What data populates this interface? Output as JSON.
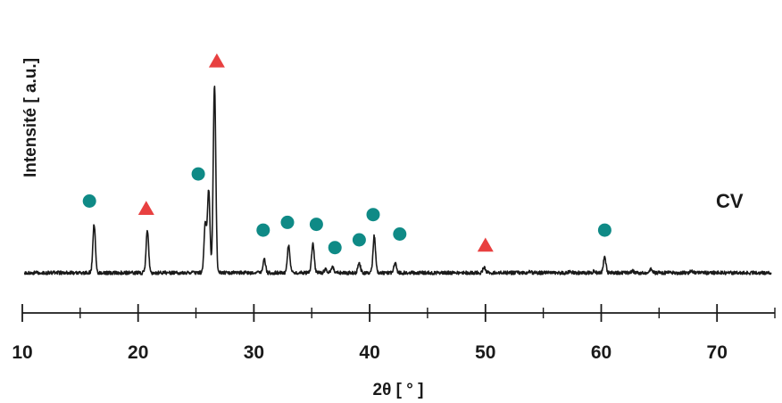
{
  "chart_data": {
    "type": "line",
    "xlabel": "2θ [ ° ]",
    "ylabel": "Intensité [ a.u.]",
    "xlim": [
      10,
      75
    ],
    "x_ticks": [
      10,
      20,
      30,
      40,
      50,
      60,
      70
    ],
    "sample_label": "CV",
    "grid": false,
    "baseline": 3,
    "peaks": [
      {
        "x": 16.2,
        "y": 28
      },
      {
        "x": 20.8,
        "y": 25
      },
      {
        "x": 25.8,
        "y": 28
      },
      {
        "x": 26.1,
        "y": 45
      },
      {
        "x": 26.6,
        "y": 100
      },
      {
        "x": 28.0,
        "y": 3
      },
      {
        "x": 30.9,
        "y": 10
      },
      {
        "x": 33.0,
        "y": 17
      },
      {
        "x": 35.1,
        "y": 18
      },
      {
        "x": 36.2,
        "y": 5
      },
      {
        "x": 36.8,
        "y": 6
      },
      {
        "x": 39.1,
        "y": 8
      },
      {
        "x": 40.4,
        "y": 22
      },
      {
        "x": 42.2,
        "y": 8
      },
      {
        "x": 45.0,
        "y": 3
      },
      {
        "x": 49.9,
        "y": 6
      },
      {
        "x": 53.8,
        "y": 4
      },
      {
        "x": 57.3,
        "y": 4
      },
      {
        "x": 59.4,
        "y": 4
      },
      {
        "x": 60.3,
        "y": 11
      },
      {
        "x": 62.7,
        "y": 4
      },
      {
        "x": 64.3,
        "y": 5
      },
      {
        "x": 67.8,
        "y": 4
      },
      {
        "x": 70.2,
        "y": 3
      }
    ],
    "markers": [
      {
        "phase": "circle",
        "x": 15.8,
        "y": 40
      },
      {
        "phase": "triangle",
        "x": 20.7,
        "y": 36
      },
      {
        "phase": "circle",
        "x": 25.2,
        "y": 54
      },
      {
        "phase": "triangle",
        "x": 26.8,
        "y": 112
      },
      {
        "phase": "circle",
        "x": 30.8,
        "y": 25
      },
      {
        "phase": "circle",
        "x": 32.9,
        "y": 29
      },
      {
        "phase": "circle",
        "x": 35.4,
        "y": 28
      },
      {
        "phase": "circle",
        "x": 37.0,
        "y": 16
      },
      {
        "phase": "circle",
        "x": 39.1,
        "y": 20
      },
      {
        "phase": "circle",
        "x": 40.3,
        "y": 33
      },
      {
        "phase": "circle",
        "x": 42.6,
        "y": 23
      },
      {
        "phase": "triangle",
        "x": 50.0,
        "y": 17
      },
      {
        "phase": "circle",
        "x": 60.3,
        "y": 25
      }
    ],
    "colors": {
      "line": "#1a1a1a",
      "circle": "#0f8a86",
      "triangle": "#e84040"
    }
  }
}
